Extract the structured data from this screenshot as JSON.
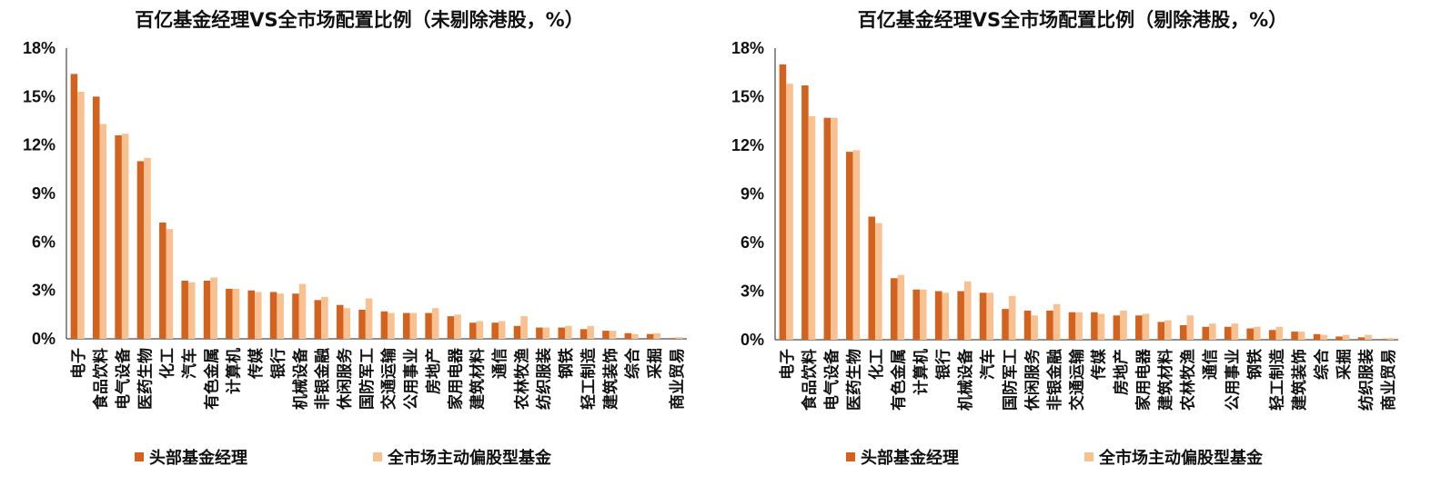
{
  "colors": {
    "head": "#D3621F",
    "market": "#F8C192"
  },
  "chart_data": [
    {
      "type": "bar",
      "title": "百亿基金经理VS全市场配置比例（未剔除港股，%）",
      "ylim": [
        0,
        18
      ],
      "yticks": [
        "0%",
        "3%",
        "6%",
        "9%",
        "12%",
        "15%",
        "18%"
      ],
      "legend_position": "bottom",
      "grid": false,
      "categories": [
        "电子",
        "食品饮料",
        "电气设备",
        "医药生物",
        "化工",
        "汽车",
        "有色金属",
        "计算机",
        "传媒",
        "银行",
        "机械设备",
        "非银金融",
        "休闲服务",
        "国防军工",
        "交通运输",
        "公用事业",
        "房地产",
        "家用电器",
        "建筑材料",
        "通信",
        "农林牧渔",
        "纺织服装",
        "钢铁",
        "轻工制造",
        "建筑装饰",
        "综合",
        "采掘",
        "商业贸易"
      ],
      "series": [
        {
          "name": "头部基金经理",
          "values": [
            16.4,
            15.0,
            12.6,
            11.0,
            7.2,
            3.6,
            3.6,
            3.1,
            3.0,
            2.9,
            2.8,
            2.4,
            2.1,
            1.8,
            1.7,
            1.6,
            1.6,
            1.4,
            1.0,
            1.0,
            0.8,
            0.7,
            0.7,
            0.6,
            0.5,
            0.35,
            0.3,
            0.05
          ]
        },
        {
          "name": "全市场主动偏股型基金",
          "values": [
            15.3,
            13.3,
            12.7,
            11.2,
            6.8,
            3.5,
            3.8,
            3.1,
            2.9,
            2.8,
            3.4,
            2.6,
            1.9,
            2.5,
            1.6,
            1.6,
            1.9,
            1.5,
            1.1,
            1.1,
            1.4,
            0.7,
            0.8,
            0.8,
            0.5,
            0.3,
            0.35,
            0.1
          ]
        }
      ]
    },
    {
      "type": "bar",
      "title": "百亿基金经理VS全市场配置比例（剔除港股，%）",
      "ylim": [
        0,
        18
      ],
      "yticks": [
        "0%",
        "3%",
        "6%",
        "9%",
        "12%",
        "15%",
        "18%"
      ],
      "legend_position": "bottom",
      "grid": false,
      "categories": [
        "电子",
        "食品饮料",
        "电气设备",
        "医药生物",
        "化工",
        "有色金属",
        "计算机",
        "银行",
        "机械设备",
        "汽车",
        "国防军工",
        "休闲服务",
        "非银金融",
        "交通运输",
        "传媒",
        "房地产",
        "家用电器",
        "建筑材料",
        "农林牧渔",
        "通信",
        "公用事业",
        "钢铁",
        "轻工制造",
        "建筑装饰",
        "综合",
        "采掘",
        "纺织服装",
        "商业贸易"
      ],
      "series": [
        {
          "name": "头部基金经理",
          "values": [
            17.0,
            15.7,
            13.7,
            11.6,
            7.6,
            3.8,
            3.1,
            3.0,
            3.0,
            2.9,
            1.9,
            1.8,
            1.8,
            1.7,
            1.7,
            1.5,
            1.5,
            1.1,
            0.9,
            0.8,
            0.8,
            0.7,
            0.6,
            0.5,
            0.35,
            0.2,
            0.15,
            0.05
          ]
        },
        {
          "name": "全市场主动偏股型基金",
          "values": [
            15.8,
            13.8,
            13.7,
            11.7,
            7.2,
            4.0,
            3.1,
            2.9,
            3.6,
            2.9,
            2.7,
            1.5,
            2.2,
            1.7,
            1.6,
            1.8,
            1.6,
            1.2,
            1.5,
            1.0,
            1.0,
            0.8,
            0.8,
            0.5,
            0.3,
            0.3,
            0.3,
            0.1
          ]
        }
      ]
    }
  ]
}
